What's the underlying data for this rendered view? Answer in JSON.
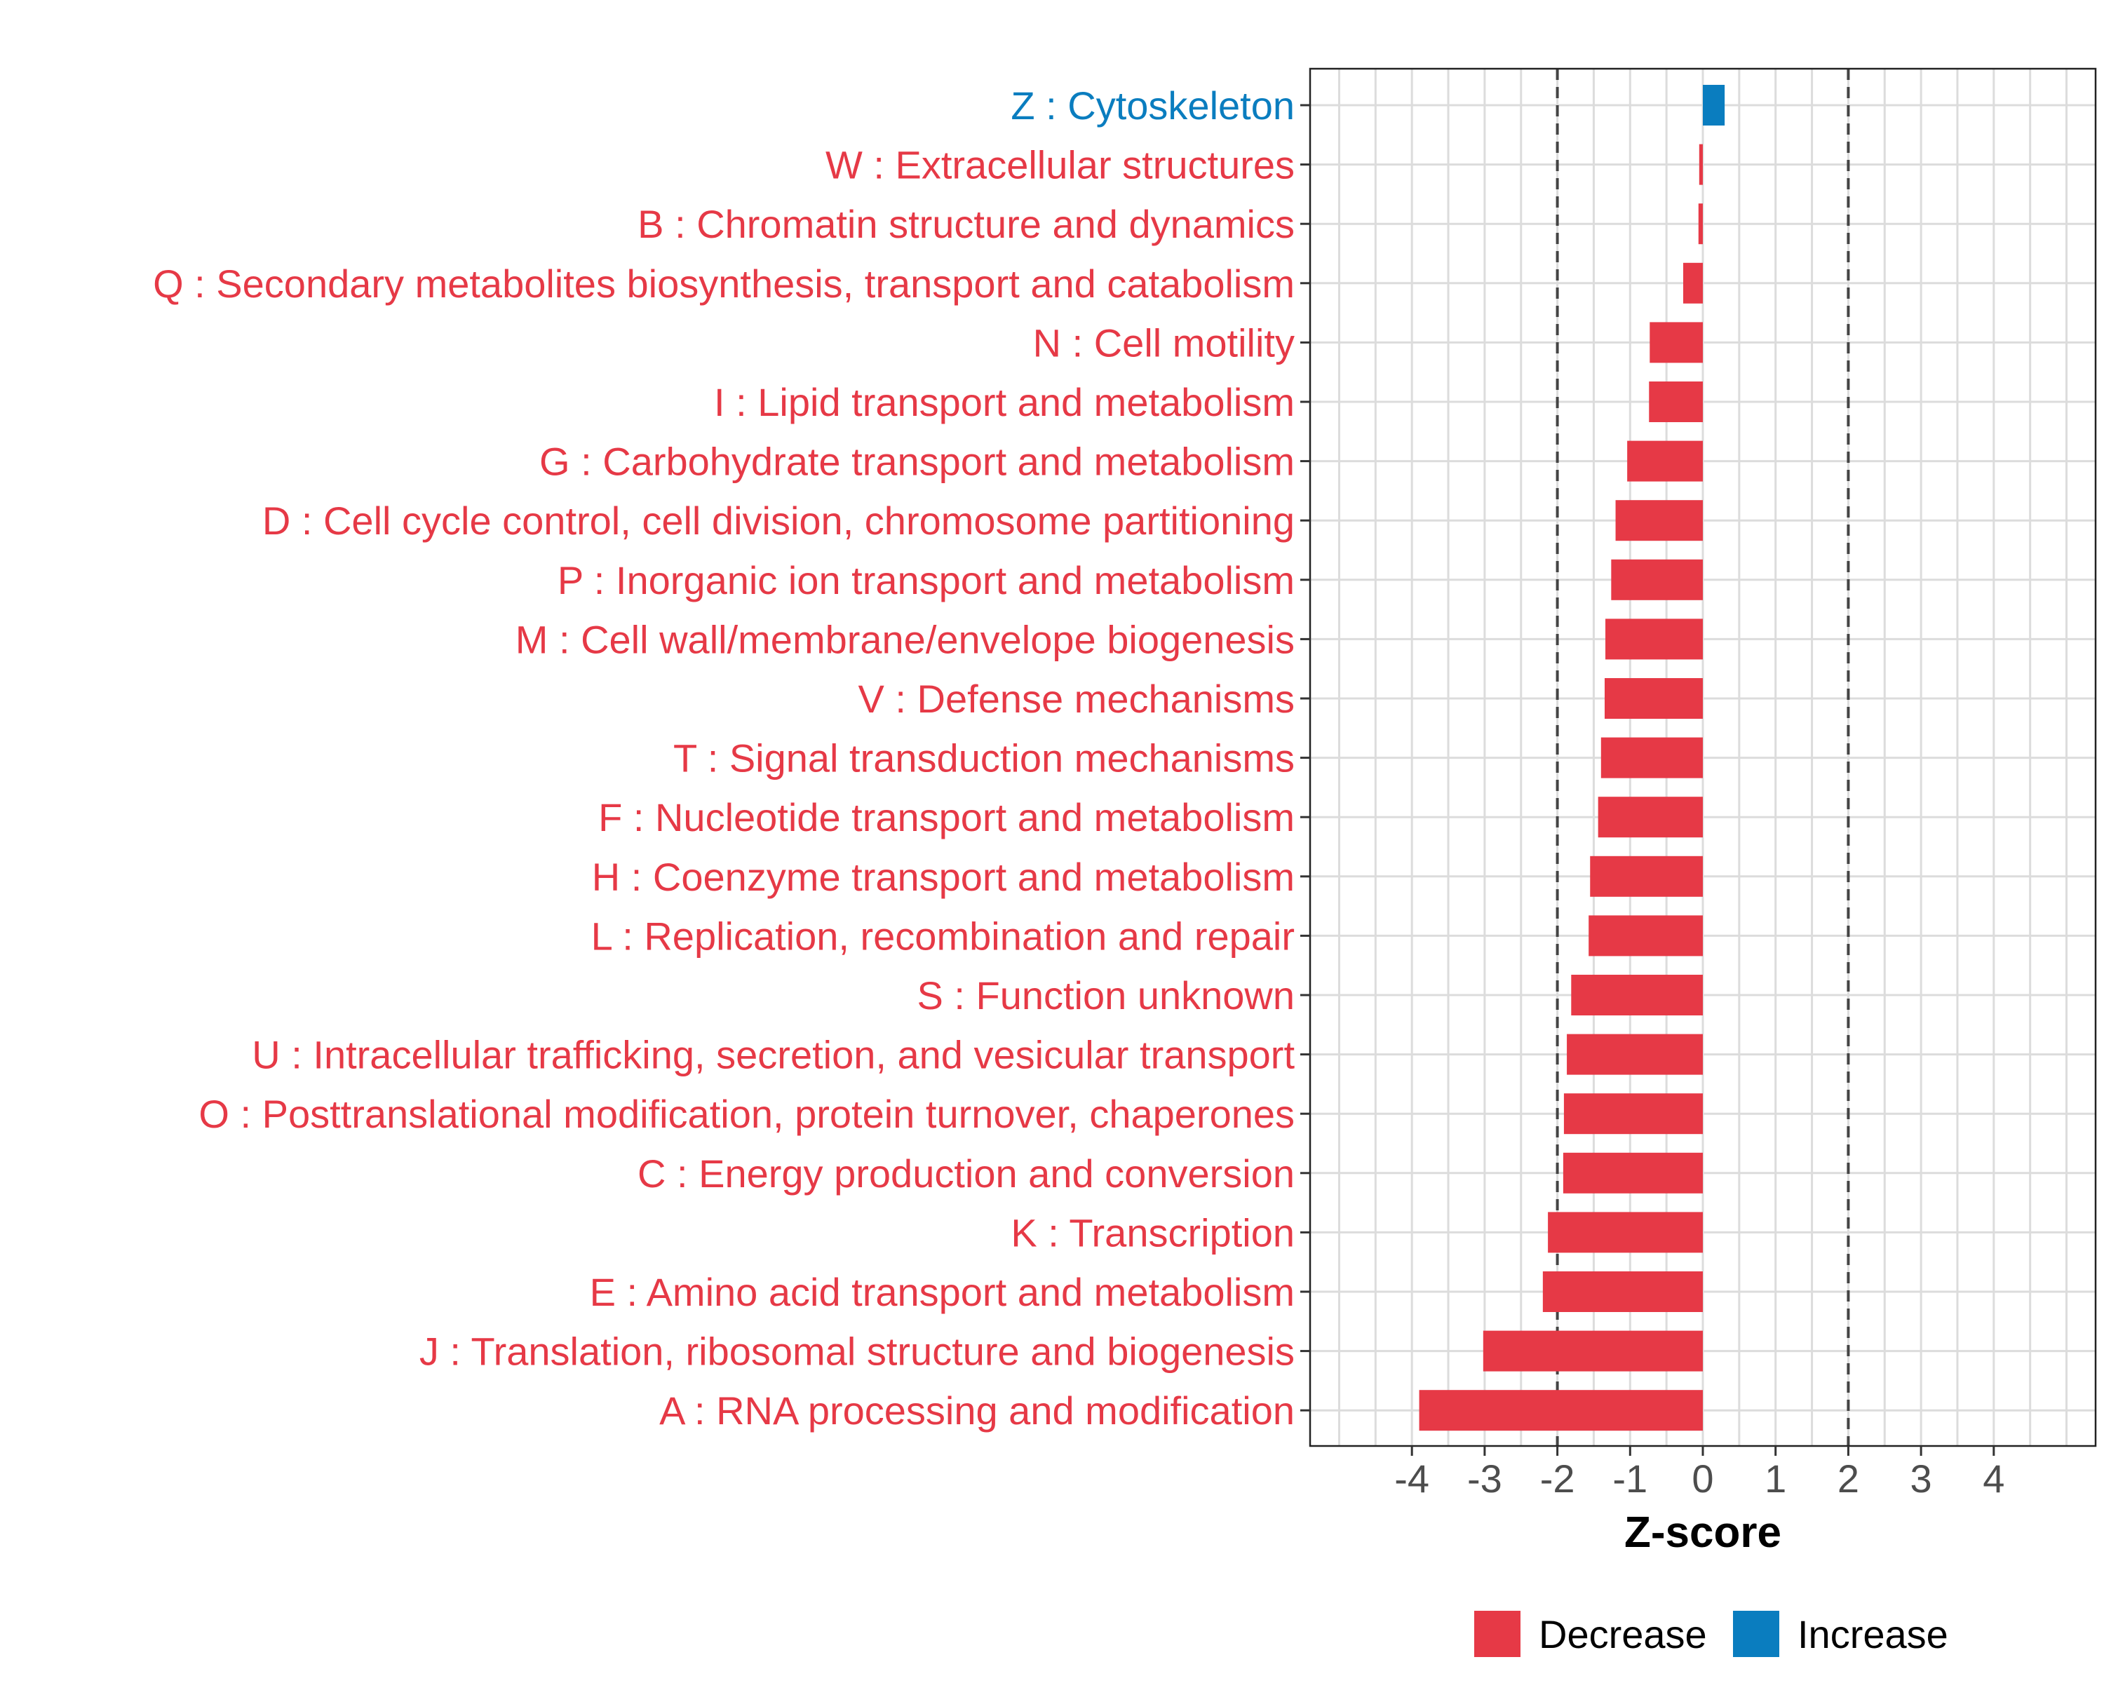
{
  "chart_data": {
    "type": "bar",
    "orientation": "horizontal",
    "title": "",
    "xlabel": "Z-score",
    "ylabel": "",
    "xlim": [
      -5.4,
      5.4
    ],
    "xticks": [
      -4,
      -3,
      -2,
      -1,
      0,
      1,
      2,
      3,
      4
    ],
    "reference_lines": [
      -2,
      2
    ],
    "grid": true,
    "legend_position": "bottom",
    "colors": {
      "Decrease": "#e63946",
      "Increase": "#0a7dbf"
    },
    "legend": [
      {
        "label": "Decrease",
        "color": "#e63946"
      },
      {
        "label": "Increase",
        "color": "#0a7dbf"
      }
    ],
    "categories": [
      "Z : Cytoskeleton",
      "W : Extracellular structures",
      "B : Chromatin structure and dynamics",
      "Q : Secondary metabolites biosynthesis, transport and catabolism",
      "N : Cell motility",
      "I : Lipid transport and metabolism",
      "G : Carbohydrate transport and metabolism",
      "D : Cell cycle control, cell division, chromosome partitioning",
      "P : Inorganic ion transport and metabolism",
      "M : Cell wall/membrane/envelope biogenesis",
      "V : Defense mechanisms",
      "T : Signal transduction mechanisms",
      "F : Nucleotide transport and metabolism",
      "H : Coenzyme transport and metabolism",
      "L : Replication, recombination and repair",
      "S : Function unknown",
      "U : Intracellular trafficking, secretion, and vesicular transport",
      "O : Posttranslational modification, protein turnover, chaperones",
      "C : Energy production and conversion",
      "K : Transcription",
      "E : Amino acid transport and metabolism",
      "J : Translation, ribosomal structure and biogenesis",
      "A : RNA processing and modification"
    ],
    "values": [
      0.3,
      -0.05,
      -0.06,
      -0.27,
      -0.73,
      -0.74,
      -1.04,
      -1.2,
      -1.26,
      -1.34,
      -1.35,
      -1.4,
      -1.44,
      -1.55,
      -1.57,
      -1.81,
      -1.87,
      -1.91,
      -1.92,
      -2.13,
      -2.2,
      -3.02,
      -3.9
    ],
    "groups": [
      "Increase",
      "Decrease",
      "Decrease",
      "Decrease",
      "Decrease",
      "Decrease",
      "Decrease",
      "Decrease",
      "Decrease",
      "Decrease",
      "Decrease",
      "Decrease",
      "Decrease",
      "Decrease",
      "Decrease",
      "Decrease",
      "Decrease",
      "Decrease",
      "Decrease",
      "Decrease",
      "Decrease",
      "Decrease",
      "Decrease"
    ]
  }
}
